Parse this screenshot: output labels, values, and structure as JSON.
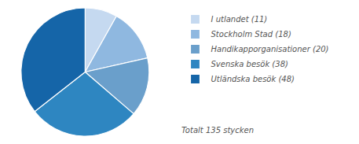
{
  "chart_data": {
    "type": "pie",
    "categories": [
      "I utlandet (11)",
      "Stockholm Stad (18)",
      "Handikapporganisationer (20)",
      "Svenska besök (38)",
      "Utländska besök (48)"
    ],
    "values": [
      11,
      18,
      20,
      38,
      48
    ],
    "colors": [
      "#c5d9f0",
      "#8fb8e0",
      "#6a9fcb",
      "#2e86c1",
      "#1565a8"
    ],
    "annotations": [
      "Totalt 135 stycken"
    ],
    "legend": "right"
  }
}
